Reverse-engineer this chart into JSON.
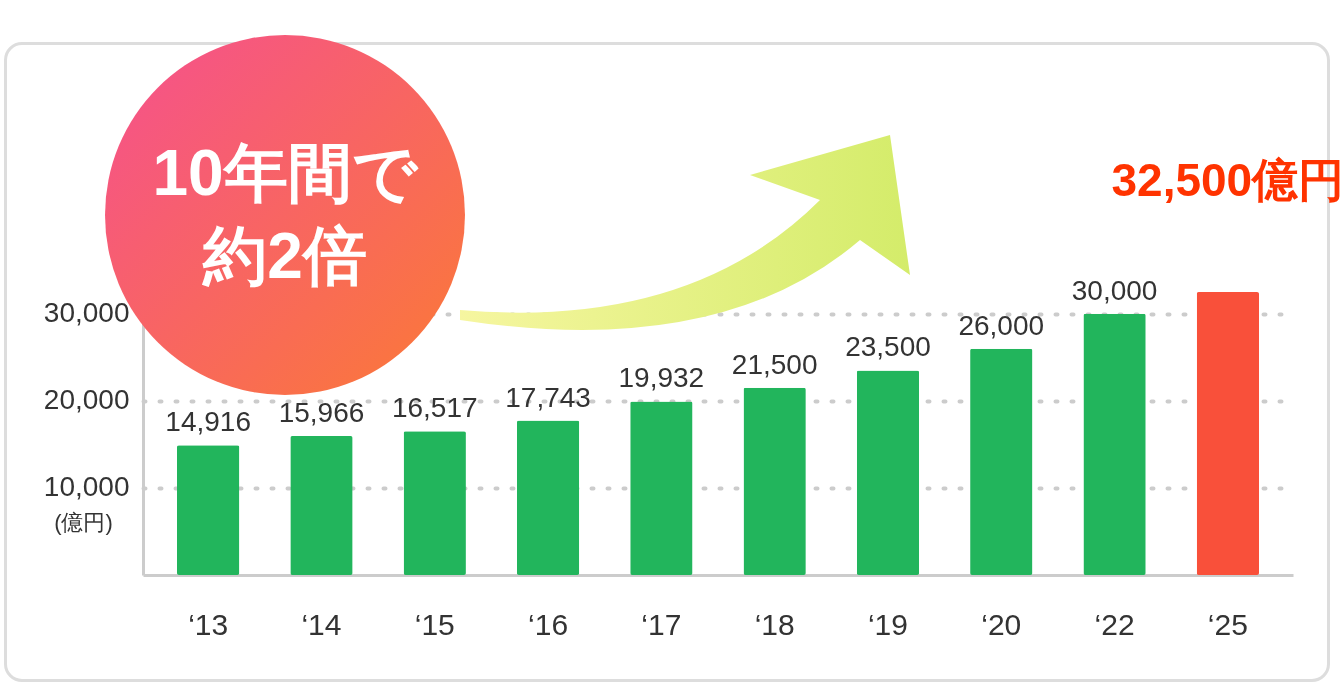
{
  "chart_data": {
    "type": "bar",
    "ylabel": "(億円)",
    "categories": [
      "‘13",
      "‘14",
      "‘15",
      "‘16",
      "‘17",
      "‘18",
      "‘19",
      "‘20",
      "‘22",
      "‘25"
    ],
    "values": [
      14916,
      15966,
      16517,
      17743,
      19932,
      21500,
      23500,
      26000,
      30000,
      32500
    ],
    "colors": [
      "#22b55c",
      "#22b55c",
      "#22b55c",
      "#22b55c",
      "#22b55c",
      "#22b55c",
      "#22b55c",
      "#22b55c",
      "#22b55c",
      "#f9503a"
    ],
    "value_labels": [
      "14,916",
      "15,966",
      "16,517",
      "17,743",
      "19,932",
      "21,500",
      "23,500",
      "26,000",
      "30,000",
      null
    ],
    "annotations": [
      "10年間で約2倍",
      {
        "text": "32,500億円",
        "x": "‘25",
        "y": 32500
      }
    ],
    "ylim": [
      0,
      34000
    ],
    "yticks": [
      {
        "value": 10000,
        "label": "10,000"
      },
      {
        "value": 20000,
        "label": "20,000"
      },
      {
        "value": 30000,
        "label": "30,000"
      }
    ],
    "grid": "y"
  }
}
